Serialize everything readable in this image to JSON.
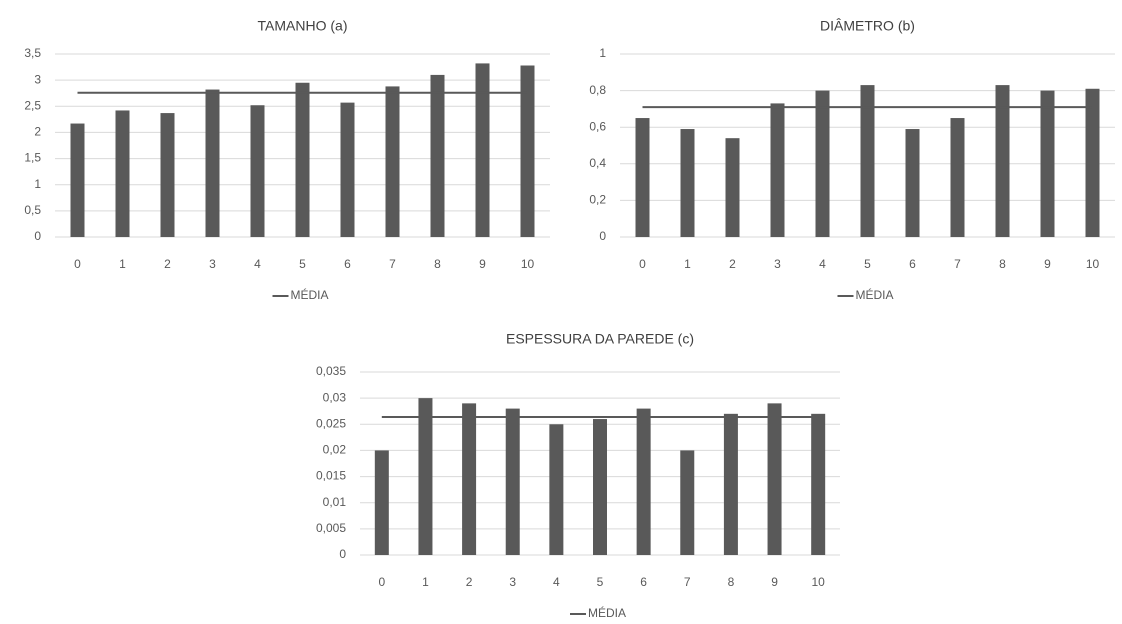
{
  "chart_data": [
    {
      "type": "bar",
      "title": "TAMANHO (a)",
      "categories": [
        "0",
        "1",
        "2",
        "3",
        "4",
        "5",
        "6",
        "7",
        "8",
        "9",
        "10"
      ],
      "series": [
        {
          "type": "bar",
          "color": "#595959",
          "values": [
            2.17,
            2.42,
            2.37,
            2.82,
            2.52,
            2.95,
            2.57,
            2.88,
            3.1,
            3.32,
            3.28
          ]
        },
        {
          "type": "line",
          "name": "MÉDIA",
          "color": "#595959",
          "values": [
            2.76,
            2.76,
            2.76,
            2.76,
            2.76,
            2.76,
            2.76,
            2.76,
            2.76,
            2.76,
            2.76
          ]
        }
      ],
      "ylim": [
        0,
        3.5
      ],
      "yticks": [
        0,
        {
          "value": 0.5,
          "label": "0,5"
        },
        1,
        {
          "value": 1.5,
          "label": "1,5"
        },
        2,
        {
          "value": 2.5,
          "label": "2,5"
        },
        3,
        {
          "value": 3.5,
          "label": "3,5"
        }
      ],
      "grid": true,
      "legend": "bottom"
    },
    {
      "type": "bar",
      "title": "DIÂMETRO (b)",
      "categories": [
        "0",
        "1",
        "2",
        "3",
        "4",
        "5",
        "6",
        "7",
        "8",
        "9",
        "10"
      ],
      "series": [
        {
          "type": "bar",
          "color": "#595959",
          "values": [
            0.65,
            0.59,
            0.54,
            0.73,
            0.8,
            0.83,
            0.59,
            0.65,
            0.83,
            0.8,
            0.81
          ]
        },
        {
          "type": "line",
          "name": "MÉDIA",
          "color": "#595959",
          "values": [
            0.71,
            0.71,
            0.71,
            0.71,
            0.71,
            0.71,
            0.71,
            0.71,
            0.71,
            0.71,
            0.71
          ]
        }
      ],
      "ylim": [
        0,
        1
      ],
      "yticks": [
        0,
        {
          "value": 0.2,
          "label": "0,2"
        },
        {
          "value": 0.4,
          "label": "0,4"
        },
        {
          "value": 0.6,
          "label": "0,6"
        },
        {
          "value": 0.8,
          "label": "0,8"
        },
        1
      ],
      "grid": true,
      "legend": "bottom"
    },
    {
      "type": "bar",
      "title": "ESPESSURA DA PAREDE (c)",
      "categories": [
        "0",
        "1",
        "2",
        "3",
        "4",
        "5",
        "6",
        "7",
        "8",
        "9",
        "10"
      ],
      "series": [
        {
          "type": "bar",
          "color": "#595959",
          "values": [
            0.02,
            0.03,
            0.029,
            0.028,
            0.025,
            0.026,
            0.028,
            0.02,
            0.027,
            0.029,
            0.027
          ]
        },
        {
          "type": "line",
          "name": "MÉDIA",
          "color": "#595959",
          "values": [
            0.0264,
            0.0264,
            0.0264,
            0.0264,
            0.0264,
            0.0264,
            0.0264,
            0.0264,
            0.0264,
            0.0264,
            0.0264
          ]
        }
      ],
      "ylim": [
        0,
        0.035
      ],
      "yticks": [
        0,
        {
          "value": 0.005,
          "label": "0,005"
        },
        {
          "value": 0.01,
          "label": "0,01"
        },
        {
          "value": 0.015,
          "label": "0,015"
        },
        {
          "value": 0.02,
          "label": "0,02"
        },
        {
          "value": 0.025,
          "label": "0,025"
        },
        {
          "value": 0.03,
          "label": "0,03"
        },
        {
          "value": 0.035,
          "label": "0,035"
        }
      ],
      "grid": true,
      "legend": "bottom"
    }
  ]
}
